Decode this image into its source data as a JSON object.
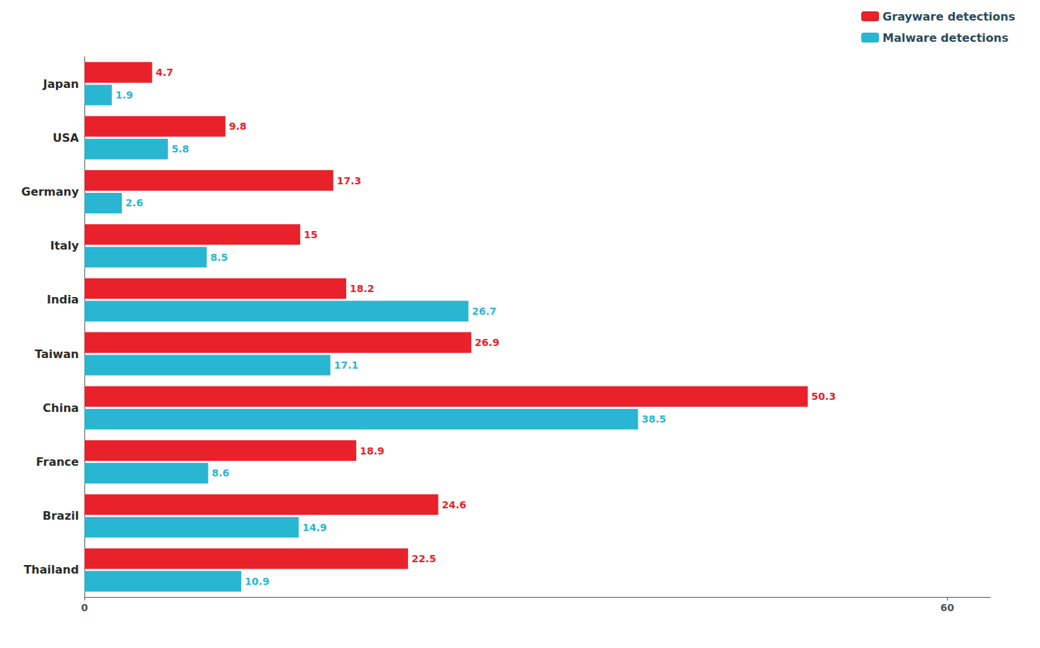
{
  "chart_data": {
    "type": "bar",
    "orientation": "horizontal",
    "categories": [
      "Japan",
      "USA",
      "Germany",
      "Italy",
      "India",
      "Taiwan",
      "China",
      "France",
      "Brazil",
      "Thailand"
    ],
    "series": [
      {
        "name": "Grayware detections",
        "color": "#e8212a",
        "values": [
          4.7,
          9.8,
          17.3,
          15.0,
          18.2,
          26.9,
          50.3,
          18.9,
          24.6,
          22.5
        ]
      },
      {
        "name": "Malware detections",
        "color": "#29b6d2",
        "values": [
          1.9,
          5.8,
          2.6,
          8.5,
          26.7,
          17.1,
          38.5,
          8.6,
          14.9,
          10.9
        ]
      }
    ],
    "xlim": [
      0,
      63
    ],
    "xticks": [
      0,
      60
    ],
    "grid": false,
    "legend": "upper right",
    "data_labels": true
  }
}
